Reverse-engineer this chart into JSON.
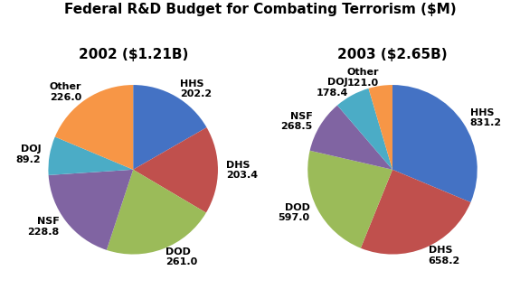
{
  "title": "Federal R&D Budget for Combating Terrorism ($M)",
  "pie1_title": "2002 ($1.21B)",
  "pie2_title": "2003 ($2.65B)",
  "pie1_labels": [
    "HHS",
    "DHS",
    "DOD",
    "NSF",
    "DOJ",
    "Other"
  ],
  "pie1_values": [
    202.2,
    203.4,
    261.0,
    228.8,
    89.2,
    226.0
  ],
  "pie2_labels": [
    "HHS",
    "DHS",
    "DOD",
    "NSF",
    "DOJ",
    "Other"
  ],
  "pie2_values": [
    831.2,
    658.2,
    597.0,
    268.5,
    178.4,
    121.0
  ],
  "colors": [
    "#4472C4",
    "#C0504D",
    "#9BBB59",
    "#8064A2",
    "#4BACC6",
    "#F79646"
  ],
  "title_fontsize": 11,
  "subtitle_fontsize": 11,
  "label_fontsize": 8,
  "pie1_startangle": 90,
  "pie2_startangle": 90
}
